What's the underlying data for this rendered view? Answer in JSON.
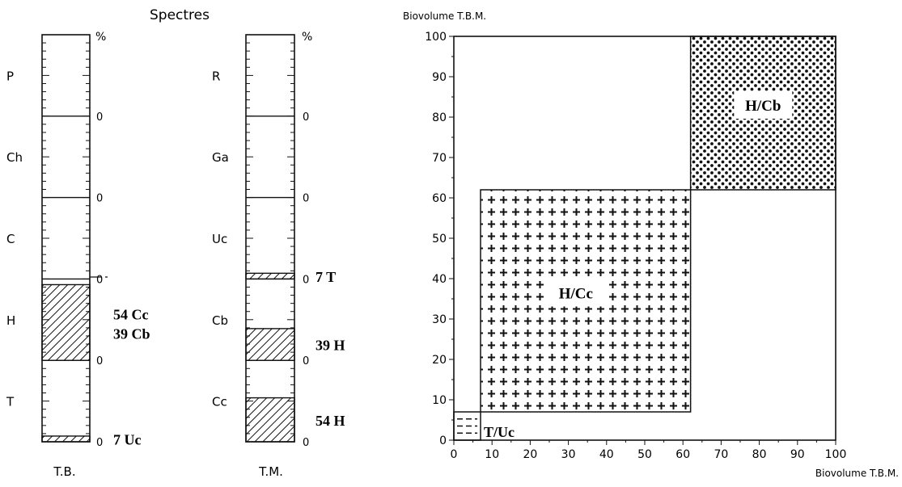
{
  "title": "Spectres",
  "chart_data": [
    {
      "type": "stacked-column",
      "column_label": "T.B.",
      "unit_label": "%",
      "zero_label": "0",
      "ylim": [
        0,
        100
      ],
      "segments": [
        {
          "category": "P",
          "shaded_value": 0,
          "annotation": ""
        },
        {
          "category": "Ch",
          "shaded_value": 0,
          "annotation": ""
        },
        {
          "category": "C",
          "shaded_value": 0,
          "annotation": ""
        },
        {
          "category": "H",
          "shaded_value": 93,
          "annotation": [
            "54 Cc",
            "39 Cb"
          ]
        },
        {
          "category": "T",
          "shaded_value": 7,
          "annotation": [
            "7 Uc"
          ]
        }
      ]
    },
    {
      "type": "stacked-column",
      "column_label": "T.M.",
      "unit_label": "%",
      "zero_label": "0",
      "ylim": [
        0,
        100
      ],
      "segments": [
        {
          "category": "R",
          "shaded_value": 0,
          "annotation": ""
        },
        {
          "category": "Ga",
          "shaded_value": 0,
          "annotation": ""
        },
        {
          "category": "Uc",
          "shaded_value": 7,
          "annotation": [
            "7 T"
          ]
        },
        {
          "category": "Cb",
          "shaded_value": 39,
          "annotation": [
            "39 H"
          ]
        },
        {
          "category": "Cc",
          "shaded_value": 54,
          "annotation": [
            "54 H"
          ]
        }
      ]
    },
    {
      "type": "area",
      "ylabel": "Biovolume  T.B.M.",
      "xlabel": "Biovolume  T.B.M.",
      "xlim": [
        0,
        100
      ],
      "ylim": [
        0,
        100
      ],
      "xticks": [
        0,
        10,
        20,
        30,
        40,
        50,
        60,
        70,
        80,
        90,
        100
      ],
      "yticks": [
        0,
        10,
        20,
        30,
        40,
        50,
        60,
        70,
        80,
        90,
        100
      ],
      "regions": [
        {
          "label": "H/Cb",
          "x": [
            62,
            100
          ],
          "y": [
            62,
            100
          ],
          "pattern": "dots"
        },
        {
          "label": "H/Cc",
          "x": [
            7,
            62
          ],
          "y": [
            7,
            62
          ],
          "pattern": "crosses"
        },
        {
          "label": "T/Uc",
          "x": [
            0,
            7
          ],
          "y": [
            0,
            7
          ],
          "pattern": "dashes"
        }
      ]
    }
  ]
}
